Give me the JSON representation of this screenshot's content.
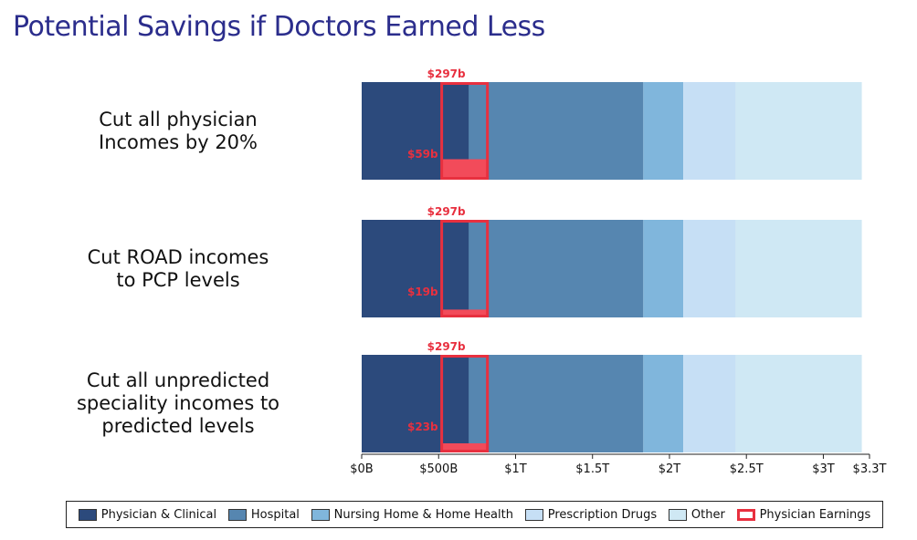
{
  "title": "Potential Savings if Doctors Earned Less",
  "chart_data": {
    "type": "bar",
    "orientation": "horizontal-stacked",
    "xlim": [
      0,
      3.3
    ],
    "x_unit": "trillion USD",
    "x_ticks": [
      0,
      0.5,
      1,
      1.5,
      2,
      2.5,
      3,
      3.3
    ],
    "x_tick_labels": [
      "$0B",
      "$500B",
      "$1T",
      "$1.5T",
      "$2T",
      "$2.5T",
      "$3T",
      "$3.3T"
    ],
    "categories": [
      "Cut all physician Incomes by 20%",
      "Cut ROAD incomes to PCP levels",
      "Cut all unpredicted speciality incomes to predicted levels"
    ],
    "category_label_lines": [
      [
        "Cut all physician",
        "Incomes by 20%"
      ],
      [
        "Cut ROAD incomes",
        "to PCP levels"
      ],
      [
        "Cut all unpredicted",
        "speciality incomes to",
        "predicted levels"
      ]
    ],
    "series": [
      {
        "name": "Physician & Clinical",
        "color": "#2c4a7c",
        "values": [
          0.69,
          0.69,
          0.69
        ]
      },
      {
        "name": "Hospital",
        "color": "#5686b0",
        "values": [
          1.14,
          1.14,
          1.14
        ]
      },
      {
        "name": "Nursing Home & Home Health",
        "color": "#80b6dc",
        "values": [
          0.26,
          0.26,
          0.26
        ]
      },
      {
        "name": "Prescription Drugs",
        "color": "#c6dff5",
        "values": [
          0.34,
          0.34,
          0.34
        ]
      },
      {
        "name": "Other",
        "color": "#cfe8f4",
        "values": [
          0.82,
          0.82,
          0.82
        ]
      }
    ],
    "physician_earnings": {
      "name": "Physician Earnings",
      "color": "#e8303f",
      "fill_color": "#f24b5a",
      "start": 0.52,
      "total": 0.297,
      "total_labels": [
        "$297b",
        "$297b",
        "$297b"
      ],
      "savings": [
        0.059,
        0.019,
        0.023
      ],
      "savings_labels": [
        "$59b",
        "$19b",
        "$23b"
      ]
    },
    "legend_position": "bottom",
    "grid": false
  }
}
